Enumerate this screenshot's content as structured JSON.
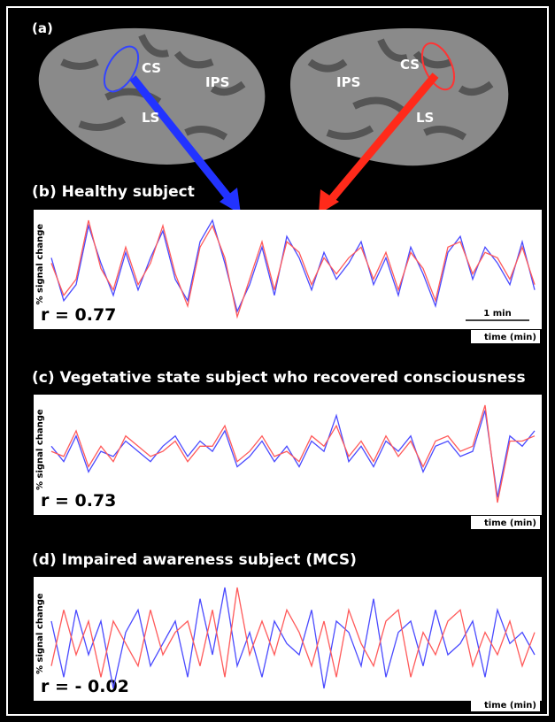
{
  "panel_a": {
    "label": "(a)",
    "left_regions": [
      "CS",
      "IPS",
      "LS"
    ],
    "right_regions": [
      "IPS",
      "CS",
      "LS"
    ]
  },
  "panels": [
    {
      "title": "(b) Healthy subject",
      "y_label": "% signal change",
      "r_label": "r = 0.77",
      "scale_bar": "1 min",
      "x_label": "time (min)",
      "series": [
        {
          "color": "#4a4aff",
          "values": [
            0.2,
            -0.6,
            -0.3,
            0.8,
            0.1,
            -0.5,
            0.3,
            -0.4,
            0.2,
            0.7,
            -0.2,
            -0.6,
            0.5,
            0.9,
            0.1,
            -0.8,
            -0.3,
            0.4,
            -0.5,
            0.6,
            0.2,
            -0.4,
            0.3,
            -0.2,
            0.1,
            0.5,
            -0.3,
            0.2,
            -0.5,
            0.4,
            -0.1,
            -0.7,
            0.3,
            0.6,
            -0.2,
            0.4,
            0.1,
            -0.3,
            0.5,
            -0.4
          ]
        },
        {
          "color": "#ff5a5a",
          "values": [
            0.1,
            -0.5,
            -0.2,
            0.9,
            0.0,
            -0.4,
            0.4,
            -0.3,
            0.1,
            0.8,
            -0.1,
            -0.7,
            0.4,
            0.8,
            0.2,
            -0.9,
            -0.2,
            0.5,
            -0.4,
            0.5,
            0.3,
            -0.3,
            0.2,
            -0.1,
            0.2,
            0.4,
            -0.2,
            0.3,
            -0.4,
            0.3,
            0.0,
            -0.6,
            0.4,
            0.5,
            -0.1,
            0.3,
            0.2,
            -0.2,
            0.4,
            -0.3
          ]
        }
      ]
    },
    {
      "title": "(c) Vegetative state subject who recovered consciousness",
      "y_label": "% signal change",
      "r_label": "r = 0.73",
      "x_label": "time (min)",
      "series": [
        {
          "color": "#4a4aff",
          "values": [
            0.1,
            -0.2,
            0.3,
            -0.4,
            0.0,
            -0.1,
            0.2,
            0.0,
            -0.2,
            0.1,
            0.3,
            -0.1,
            0.2,
            0.0,
            0.4,
            -0.3,
            -0.1,
            0.2,
            -0.2,
            0.1,
            -0.3,
            0.2,
            0.0,
            0.7,
            -0.2,
            0.1,
            -0.3,
            0.2,
            0.0,
            0.3,
            -0.4,
            0.1,
            0.2,
            -0.1,
            0.0,
            0.8,
            -0.9,
            0.3,
            0.1,
            0.4
          ]
        },
        {
          "color": "#ff5a5a",
          "values": [
            0.0,
            -0.1,
            0.4,
            -0.3,
            0.1,
            -0.2,
            0.3,
            0.1,
            -0.1,
            0.0,
            0.2,
            -0.2,
            0.1,
            0.1,
            0.5,
            -0.2,
            0.0,
            0.3,
            -0.1,
            0.0,
            -0.2,
            0.3,
            0.1,
            0.5,
            -0.1,
            0.2,
            -0.2,
            0.3,
            -0.1,
            0.2,
            -0.3,
            0.2,
            0.3,
            0.0,
            0.1,
            0.9,
            -1.0,
            0.2,
            0.2,
            0.3
          ]
        }
      ]
    },
    {
      "title": "(d) Impaired awareness subject (MCS)",
      "y_label": "% signal change",
      "r_label": "r = - 0.02",
      "x_label": "time (min)",
      "series": [
        {
          "color": "#4a4aff",
          "values": [
            0.2,
            -0.3,
            0.3,
            -0.1,
            0.2,
            -0.4,
            0.1,
            0.3,
            -0.2,
            0.0,
            0.2,
            -0.3,
            0.4,
            -0.1,
            0.5,
            -0.2,
            0.1,
            -0.3,
            0.2,
            0.0,
            -0.1,
            0.3,
            -0.4,
            0.2,
            0.1,
            -0.2,
            0.4,
            -0.3,
            0.1,
            0.2,
            -0.2,
            0.3,
            -0.1,
            0.0,
            0.2,
            -0.3,
            0.3,
            0.0,
            0.1,
            -0.1
          ]
        },
        {
          "color": "#ff5a5a",
          "values": [
            -0.2,
            0.3,
            -0.1,
            0.2,
            -0.3,
            0.2,
            0.0,
            -0.2,
            0.3,
            -0.1,
            0.1,
            0.2,
            -0.2,
            0.3,
            -0.3,
            0.5,
            -0.1,
            0.2,
            -0.1,
            0.3,
            0.1,
            -0.2,
            0.2,
            -0.3,
            0.3,
            0.0,
            -0.2,
            0.2,
            0.3,
            -0.3,
            0.1,
            -0.1,
            0.2,
            0.3,
            -0.2,
            0.1,
            -0.1,
            0.2,
            -0.2,
            0.1
          ]
        }
      ]
    }
  ]
}
